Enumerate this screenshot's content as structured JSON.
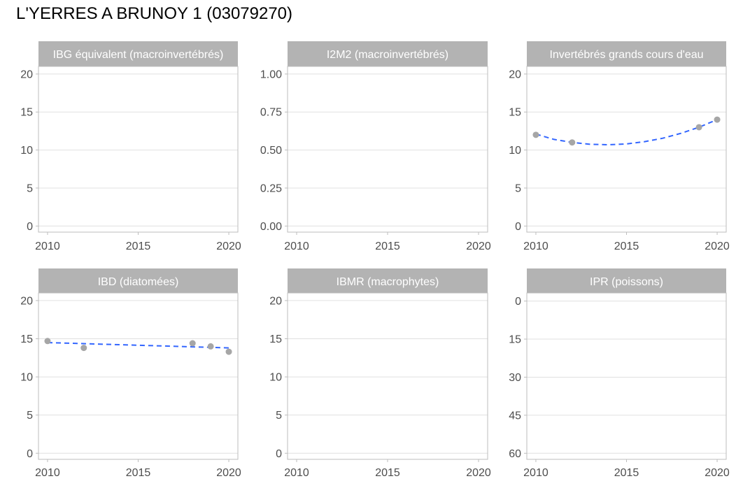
{
  "title": "L'YERRES A BRUNOY 1 (03079270)",
  "colors": {
    "strip": "#b3b3b3",
    "panel_border": "#bdbdbd",
    "grid": "#e0e0e0",
    "point": "#a6a6a6",
    "trend": "#3366ff"
  },
  "chart_data": [
    {
      "type": "scatter",
      "title": "IBG équivalent (macroinvertébrés)",
      "xlim": [
        2009.5,
        2020.5
      ],
      "x_ticks": [
        2010,
        2015,
        2020
      ],
      "ylim": [
        -0.8,
        21
      ],
      "y_ticks": [
        0,
        5,
        10,
        15,
        20
      ],
      "y_tick_labels": [
        "0",
        "5",
        "10",
        "15",
        "20"
      ],
      "y_reversed": false,
      "points": [],
      "trend": null
    },
    {
      "type": "scatter",
      "title": "I2M2 (macroinvertébrés)",
      "xlim": [
        2009.5,
        2020.5
      ],
      "x_ticks": [
        2010,
        2015,
        2020
      ],
      "ylim": [
        -0.04,
        1.05
      ],
      "y_ticks": [
        0,
        0.25,
        0.5,
        0.75,
        1
      ],
      "y_tick_labels": [
        "0.00",
        "0.25",
        "0.50",
        "0.75",
        "1.00"
      ],
      "y_reversed": false,
      "points": [],
      "trend": null
    },
    {
      "type": "scatter",
      "title": "Invertébrés grands cours d'eau",
      "xlim": [
        2009.5,
        2020.5
      ],
      "x_ticks": [
        2010,
        2015,
        2020
      ],
      "ylim": [
        -0.8,
        21
      ],
      "y_ticks": [
        0,
        5,
        10,
        15,
        20
      ],
      "y_tick_labels": [
        "0",
        "5",
        "10",
        "15",
        "20"
      ],
      "y_reversed": false,
      "points": [
        [
          2010,
          12
        ],
        [
          2012,
          11
        ],
        [
          2019,
          13
        ],
        [
          2020,
          14
        ]
      ],
      "trend": [
        [
          2010,
          12.1
        ],
        [
          2011,
          11.4
        ],
        [
          2012,
          11.0
        ],
        [
          2013,
          10.75
        ],
        [
          2014,
          10.7
        ],
        [
          2015,
          10.8
        ],
        [
          2016,
          11.1
        ],
        [
          2017,
          11.55
        ],
        [
          2018,
          12.2
        ],
        [
          2019,
          13.0
        ],
        [
          2020,
          14.0
        ]
      ]
    },
    {
      "type": "scatter",
      "title": "IBD (diatomées)",
      "xlim": [
        2009.5,
        2020.5
      ],
      "x_ticks": [
        2010,
        2015,
        2020
      ],
      "ylim": [
        -0.8,
        21
      ],
      "y_ticks": [
        0,
        5,
        10,
        15,
        20
      ],
      "y_tick_labels": [
        "0",
        "5",
        "10",
        "15",
        "20"
      ],
      "y_reversed": false,
      "points": [
        [
          2010,
          14.7
        ],
        [
          2012,
          13.8
        ],
        [
          2018,
          14.4
        ],
        [
          2019,
          14.0
        ],
        [
          2020,
          13.3
        ]
      ],
      "trend": [
        [
          2010,
          14.5
        ],
        [
          2020,
          13.8
        ]
      ]
    },
    {
      "type": "scatter",
      "title": "IBMR (macrophytes)",
      "xlim": [
        2009.5,
        2020.5
      ],
      "x_ticks": [
        2010,
        2015,
        2020
      ],
      "ylim": [
        -0.8,
        21
      ],
      "y_ticks": [
        0,
        5,
        10,
        15,
        20
      ],
      "y_tick_labels": [
        "0",
        "5",
        "10",
        "15",
        "20"
      ],
      "y_reversed": false,
      "points": [],
      "trend": null
    },
    {
      "type": "scatter",
      "title": "IPR (poissons)",
      "xlim": [
        2009.5,
        2020.5
      ],
      "x_ticks": [
        2010,
        2015,
        2020
      ],
      "ylim": [
        -3.2,
        62.4
      ],
      "y_ticks": [
        0,
        15,
        30,
        45,
        60
      ],
      "y_tick_labels": [
        "0",
        "15",
        "30",
        "45",
        "60"
      ],
      "y_reversed": true,
      "points": [],
      "trend": null
    }
  ]
}
